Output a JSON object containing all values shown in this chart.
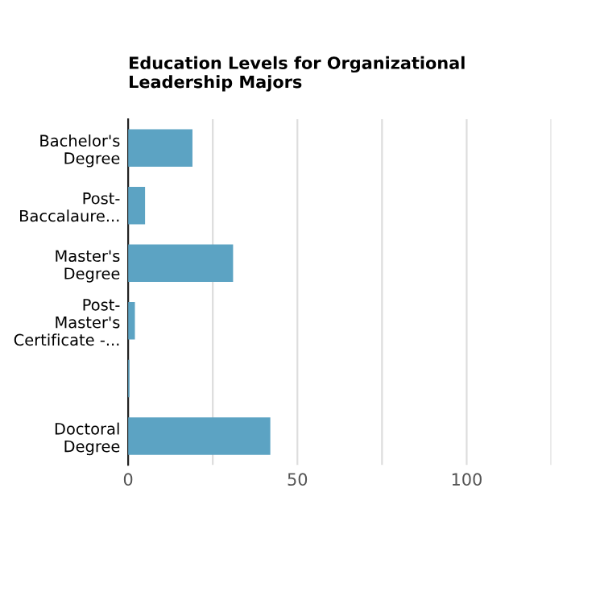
{
  "chart_data": {
    "type": "bar",
    "orientation": "horizontal",
    "title": "Education Levels for Organizational\nLeadership Majors",
    "categories": [
      "Bachelor's\nDegree",
      "Post-\nBaccalaure...",
      "Master's\nDegree",
      "Post-\nMaster's\nCertificate -...",
      null,
      "Doctoral\nDegree"
    ],
    "values": [
      19,
      5,
      31,
      2,
      0.4,
      42
    ],
    "color": "#5ca3c3",
    "xlim": [
      0,
      125
    ],
    "xticks": [
      0,
      {
        "value": 25,
        "label": null
      },
      50,
      {
        "value": 75,
        "label": null
      },
      100,
      {
        "value": 125,
        "label": null
      }
    ],
    "grid": "x"
  }
}
